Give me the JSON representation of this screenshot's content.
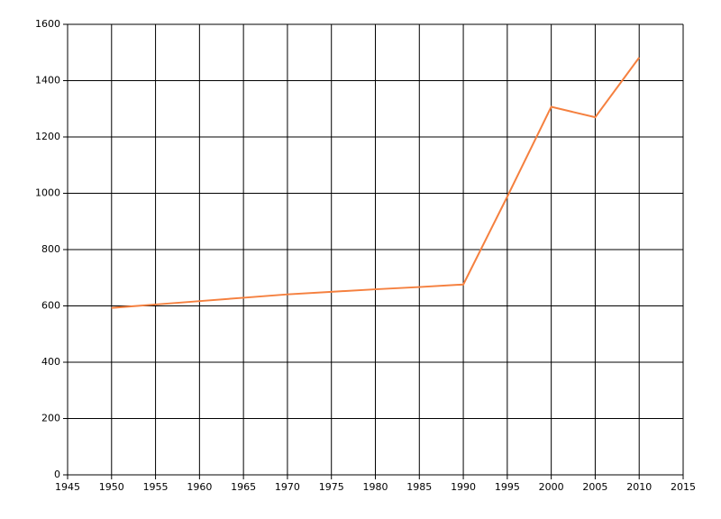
{
  "chart_data": {
    "type": "line",
    "x": [
      1950,
      1955,
      1960,
      1965,
      1970,
      1975,
      1980,
      1985,
      1990,
      1995,
      2000,
      2005,
      2010
    ],
    "series": [
      {
        "color": "#f5803f",
        "values": [
          593,
          605,
          617,
          629,
          641,
          650,
          659,
          667,
          676,
          988,
          1307,
          1270,
          1482
        ]
      }
    ],
    "xlim": [
      1945,
      2015
    ],
    "xticks": [
      1945,
      1950,
      1955,
      1960,
      1965,
      1970,
      1975,
      1980,
      1985,
      1990,
      1995,
      2000,
      2005,
      2010,
      2015
    ],
    "ylim": [
      0,
      1600
    ],
    "yticks": [
      0,
      200,
      400,
      600,
      800,
      1000,
      1200,
      1400,
      1600
    ],
    "grid": true
  }
}
